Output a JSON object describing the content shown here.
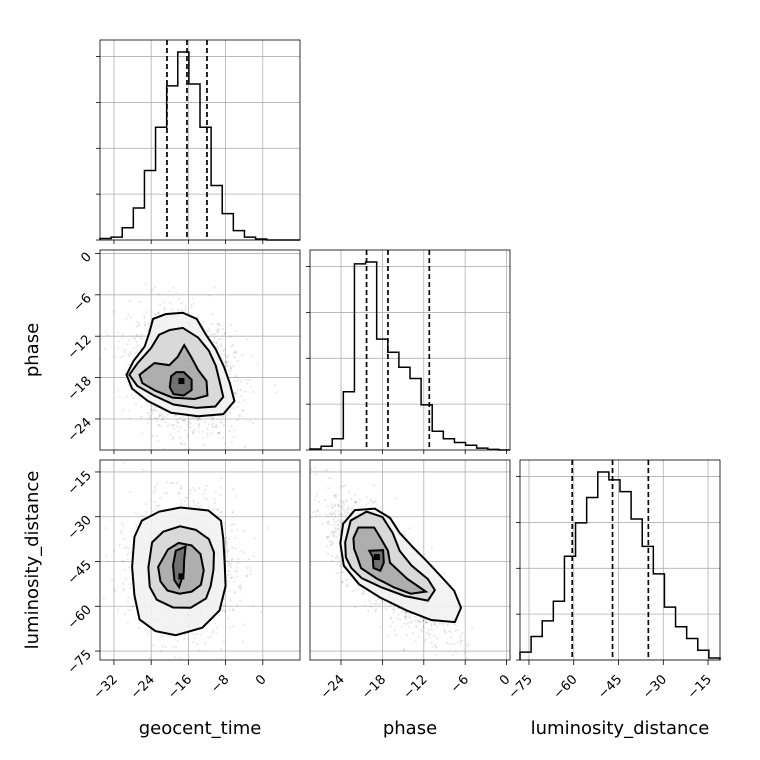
{
  "chart_data": {
    "type": "corner",
    "parameters": [
      "geocent_time",
      "phase",
      "luminosity_distance"
    ],
    "grid": true,
    "axes": {
      "geocent_time": {
        "range": [
          -35,
          8
        ],
        "ticks": [
          -32,
          -24,
          -16,
          -8,
          0
        ],
        "tick_labels": [
          "−32",
          "−24",
          "−16",
          "−8",
          "0"
        ]
      },
      "phase": {
        "range": [
          -28.5,
          0.5
        ],
        "ticks": [
          -24,
          -18,
          -12,
          -6,
          0
        ],
        "tick_labels": [
          "−24",
          "−18",
          "−12",
          "−6",
          "0"
        ]
      },
      "luminosity_distance": {
        "range": [
          -78,
          -11
        ],
        "ticks": [
          -75,
          -60,
          -45,
          -30,
          -15
        ],
        "tick_labels": [
          "−75",
          "−60",
          "−45",
          "−30",
          "−15"
        ]
      }
    },
    "histograms": [
      {
        "parameter": "geocent_time",
        "bin_edges": [
          -35,
          -32.611,
          -30.222,
          -27.833,
          -25.444,
          -23.056,
          -20.667,
          -18.278,
          -15.889,
          -13.5,
          -11.111,
          -8.722,
          -6.333,
          -3.944,
          -1.556,
          0.833,
          3.222,
          5.611,
          8
        ],
        "counts": [
          0.008,
          0.015,
          0.065,
          0.17,
          0.37,
          0.6,
          0.82,
          1.0,
          0.83,
          0.6,
          0.29,
          0.14,
          0.05,
          0.015,
          0.005,
          0,
          0,
          0
        ],
        "quantiles": [
          -20.6,
          -16.3,
          -12.0
        ]
      },
      {
        "parameter": "phase",
        "bin_edges": [
          -28.5,
          -26.889,
          -25.278,
          -23.667,
          -22.056,
          -20.444,
          -18.833,
          -17.222,
          -15.611,
          -14,
          -12.389,
          -10.778,
          -9.167,
          -7.556,
          -5.944,
          -4.333,
          -2.722,
          -1.111,
          0.5
        ],
        "counts": [
          0.005,
          0.02,
          0.06,
          0.31,
          0.99,
          1.0,
          0.59,
          0.52,
          0.44,
          0.38,
          0.24,
          0.1,
          0.06,
          0.04,
          0.025,
          0.01,
          0.003,
          0
        ],
        "quantiles": [
          -20.3,
          -17.2,
          -11.2
        ]
      },
      {
        "parameter": "luminosity_distance",
        "bin_edges": [
          -78,
          -74.278,
          -70.556,
          -66.833,
          -63.111,
          -59.389,
          -55.667,
          -51.944,
          -48.222,
          -44.5,
          -40.778,
          -37.056,
          -33.333,
          -29.611,
          -25.889,
          -22.167,
          -18.444,
          -14.722,
          -11
        ],
        "counts": [
          0.04,
          0.12,
          0.2,
          0.3,
          0.53,
          0.7,
          0.83,
          0.96,
          0.92,
          0.86,
          0.72,
          0.58,
          0.44,
          0.27,
          0.17,
          0.11,
          0.05,
          0.01
        ],
        "quantiles": [
          -60.5,
          -47.0,
          -35.0
        ]
      }
    ],
    "pairs": [
      {
        "x": "geocent_time",
        "y": "phase",
        "mode": [
          -17.5,
          -18.5
        ],
        "contours": [
          [
            [
              -17,
              -17.2
            ],
            [
              -15.3,
              -18.3
            ],
            [
              -15.3,
              -19.8
            ],
            [
              -17,
              -20.6
            ],
            [
              -19.2,
              -20.4
            ],
            [
              -20,
              -19.4
            ],
            [
              -19.7,
              -17.8
            ],
            [
              -18.6,
              -17.2
            ]
          ],
          [
            [
              -26.5,
              -17.6
            ],
            [
              -23.3,
              -15.9
            ],
            [
              -20.1,
              -16.2
            ],
            [
              -18.3,
              -15
            ],
            [
              -16.9,
              -13.3
            ],
            [
              -15.4,
              -15
            ],
            [
              -13.9,
              -16.9
            ],
            [
              -12.1,
              -18.5
            ],
            [
              -11.9,
              -20.6
            ],
            [
              -14.7,
              -21.1
            ],
            [
              -19.4,
              -20.9
            ],
            [
              -23.1,
              -19.9
            ],
            [
              -25.9,
              -18.8
            ]
          ],
          [
            [
              -28.7,
              -17.6
            ],
            [
              -26.9,
              -15.9
            ],
            [
              -24,
              -13.7
            ],
            [
              -22.3,
              -11.8
            ],
            [
              -20,
              -11.1
            ],
            [
              -17.2,
              -10.8
            ],
            [
              -13.9,
              -12.2
            ],
            [
              -11.6,
              -14.1
            ],
            [
              -10.1,
              -16.3
            ],
            [
              -9.3,
              -18.5
            ],
            [
              -8.5,
              -20.8
            ],
            [
              -10.2,
              -22.2
            ],
            [
              -14.2,
              -22.4
            ],
            [
              -19.2,
              -21.9
            ],
            [
              -23.4,
              -20.6
            ],
            [
              -27,
              -19.2
            ]
          ],
          [
            [
              -29.3,
              -17.6
            ],
            [
              -27.8,
              -15.6
            ],
            [
              -25.4,
              -13.5
            ],
            [
              -24.4,
              -11.5
            ],
            [
              -23.6,
              -9.5
            ],
            [
              -20.9,
              -8.8
            ],
            [
              -17.2,
              -8.6
            ],
            [
              -14.2,
              -9.5
            ],
            [
              -12.3,
              -11.7
            ],
            [
              -10.1,
              -13.9
            ],
            [
              -8.3,
              -16.5
            ],
            [
              -7.1,
              -18.8
            ],
            [
              -6.1,
              -21.4
            ],
            [
              -8.5,
              -23.3
            ],
            [
              -13.9,
              -23.6
            ],
            [
              -19.7,
              -23.1
            ],
            [
              -24.7,
              -21.4
            ],
            [
              -28.1,
              -19.6
            ]
          ]
        ]
      },
      {
        "x": "geocent_time",
        "y": "luminosity_distance",
        "mode": [
          -17.5,
          -50.0
        ],
        "contours": [
          [
            [
              -18,
              -53.6
            ],
            [
              -17,
              -48.8
            ],
            [
              -16.9,
              -44.4
            ],
            [
              -16.6,
              -40
            ],
            [
              -18.7,
              -41.4
            ],
            [
              -19.3,
              -46.3
            ],
            [
              -19,
              -51.3
            ]
          ],
          [
            [
              -22.5,
              -46.8
            ],
            [
              -20.4,
              -41
            ],
            [
              -18.1,
              -38.8
            ],
            [
              -15.3,
              -39.6
            ],
            [
              -13.4,
              -42.5
            ],
            [
              -12.7,
              -48
            ],
            [
              -13.3,
              -52.8
            ],
            [
              -15.3,
              -55.1
            ],
            [
              -17.9,
              -55.8
            ],
            [
              -20.5,
              -54.7
            ],
            [
              -22,
              -51.7
            ]
          ],
          [
            [
              -24.6,
              -47
            ],
            [
              -23.8,
              -38.6
            ],
            [
              -21.4,
              -35
            ],
            [
              -17.8,
              -33.2
            ],
            [
              -14.4,
              -34.4
            ],
            [
              -11.6,
              -37.5
            ],
            [
              -10.5,
              -41.9
            ],
            [
              -10.6,
              -47.7
            ],
            [
              -11.2,
              -53.2
            ],
            [
              -12.2,
              -57.4
            ],
            [
              -15.5,
              -60.5
            ],
            [
              -19.3,
              -60.4
            ],
            [
              -22.8,
              -57.8
            ],
            [
              -24.3,
              -53.5
            ]
          ],
          [
            [
              -28.1,
              -46.8
            ],
            [
              -27.6,
              -36.8
            ],
            [
              -26,
              -31.3
            ],
            [
              -22.3,
              -28.3
            ],
            [
              -17.7,
              -26.9
            ],
            [
              -11.7,
              -27.9
            ],
            [
              -9,
              -31.3
            ],
            [
              -8.5,
              -37.2
            ],
            [
              -8.2,
              -45.4
            ],
            [
              -8,
              -53.2
            ],
            [
              -9.3,
              -61.4
            ],
            [
              -13,
              -67.2
            ],
            [
              -18.7,
              -69.7
            ],
            [
              -23.1,
              -68.3
            ],
            [
              -26.5,
              -64.4
            ],
            [
              -27.6,
              -56.3
            ]
          ]
        ]
      },
      {
        "x": "phase",
        "y": "luminosity_distance",
        "mode": [
          -18.8,
          -43.5
        ],
        "contours": [
          [
            [
              -19.9,
              -41.4
            ],
            [
              -17.9,
              -41.2
            ],
            [
              -17.8,
              -45.4
            ],
            [
              -18.3,
              -48.1
            ],
            [
              -19.3,
              -47.2
            ],
            [
              -19.4,
              -43.5
            ]
          ],
          [
            [
              -22.2,
              -37.2
            ],
            [
              -21.5,
              -33.6
            ],
            [
              -19.2,
              -33.6
            ],
            [
              -18.4,
              -36.6
            ],
            [
              -17.2,
              -41.4
            ],
            [
              -16.9,
              -45.4
            ],
            [
              -14.4,
              -50.8
            ],
            [
              -11.7,
              -55.1
            ],
            [
              -13.9,
              -55.8
            ],
            [
              -16.3,
              -53.7
            ],
            [
              -18.9,
              -50.6
            ],
            [
              -21.1,
              -47.2
            ],
            [
              -21.7,
              -43.2
            ],
            [
              -22.1,
              -40.8
            ]
          ],
          [
            [
              -23.4,
              -38.6
            ],
            [
              -22.6,
              -31.3
            ],
            [
              -20.3,
              -28.3
            ],
            [
              -18,
              -30.1
            ],
            [
              -16.5,
              -35.5
            ],
            [
              -15.5,
              -41.4
            ],
            [
              -13.8,
              -46.3
            ],
            [
              -11.4,
              -50.9
            ],
            [
              -10.4,
              -54.6
            ],
            [
              -11.4,
              -58.1
            ],
            [
              -14.7,
              -56.6
            ],
            [
              -18.1,
              -53.7
            ],
            [
              -21,
              -50.6
            ],
            [
              -22.5,
              -47.2
            ],
            [
              -23.3,
              -43.6
            ]
          ],
          [
            [
              -24.1,
              -38.9
            ],
            [
              -23.7,
              -32.4
            ],
            [
              -22,
              -27.8
            ],
            [
              -19.1,
              -27.3
            ],
            [
              -16.9,
              -30.4
            ],
            [
              -15.5,
              -35.4
            ],
            [
              -13.5,
              -40.4
            ],
            [
              -11.6,
              -44.8
            ],
            [
              -9.7,
              -49.5
            ],
            [
              -7.6,
              -54.8
            ],
            [
              -6.6,
              -60.5
            ],
            [
              -7.5,
              -65.3
            ],
            [
              -10.9,
              -64.6
            ],
            [
              -14.5,
              -61.4
            ],
            [
              -18.3,
              -57.1
            ],
            [
              -21.4,
              -52.6
            ],
            [
              -23.6,
              -46.4
            ]
          ]
        ]
      }
    ]
  }
}
